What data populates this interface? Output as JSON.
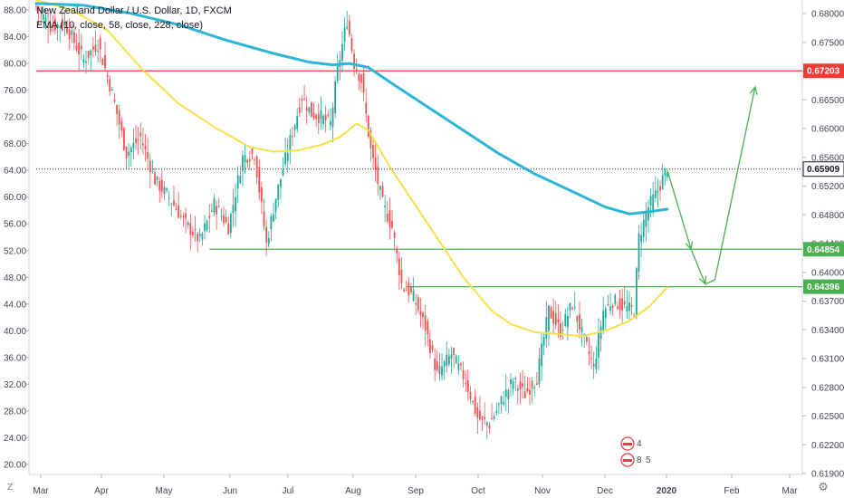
{
  "legend": {
    "title": "New Zealand Dollar / U.S. Dollar, 1D, FXCM",
    "indicator": "EMA (10, close, 58, close, 228, close)"
  },
  "corner": {
    "left_icon": "Z",
    "right_icon": "gear-icon"
  },
  "colors": {
    "bull": "#26a69a",
    "bear": "#ef5350",
    "ema_fast": "#f7e04a",
    "ema_slow": "#2cb5d6",
    "resistance": "#ef3b36",
    "support": "#4caf50",
    "arrow": "#4caf50"
  },
  "chart_data": {
    "type": "candlestick",
    "title": "New Zealand Dollar / U.S. Dollar, 1D, FXCM",
    "x_ticks": [
      "Mar",
      "Apr",
      "May",
      "Jun",
      "Jul",
      "Aug",
      "Sep",
      "Oct",
      "Nov",
      "Dec",
      "2020",
      "Feb",
      "Mar"
    ],
    "left_axis": {
      "ticks": [
        "88.00",
        "84.00",
        "80.00",
        "76.00",
        "72.00",
        "68.00",
        "64.00",
        "60.00",
        "56.00",
        "52.00",
        "48.00",
        "44.00",
        "40.00",
        "36.00",
        "32.00",
        "28.00",
        "24.00",
        "20.00"
      ],
      "ylim": [
        18.5,
        89.5
      ]
    },
    "right_axis": {
      "ticks": [
        "0.68000",
        "0.67500",
        "0.67000",
        "0.66500",
        "0.66000",
        "0.65600",
        "0.65200",
        "0.64800",
        "0.64400",
        "0.64000",
        "0.63700",
        "0.63400",
        "0.63100",
        "0.62800",
        "0.62500",
        "0.62200",
        "0.61900"
      ]
    },
    "price_labels": [
      {
        "value": "0.67203",
        "kind": "resistance"
      },
      {
        "value": "0.65909",
        "kind": "last"
      },
      {
        "value": "0.64854",
        "kind": "support"
      },
      {
        "value": "0.64396",
        "kind": "support"
      }
    ],
    "levels": [
      {
        "kind": "resistance",
        "y": 78.9,
        "from_day": 0
      },
      {
        "kind": "last",
        "y": 64.2,
        "from_day": 0
      },
      {
        "kind": "support",
        "y": 52.2,
        "from_day": 73
      },
      {
        "kind": "support",
        "y": 46.6,
        "from_day": 156
      }
    ],
    "price_path": [
      [
        0,
        88.5
      ],
      [
        6,
        85.5
      ],
      [
        12,
        86.0
      ],
      [
        20,
        80.5
      ],
      [
        26,
        83.0
      ],
      [
        32,
        75.5
      ],
      [
        38,
        66.5
      ],
      [
        44,
        69.0
      ],
      [
        50,
        62.5
      ],
      [
        56,
        60.0
      ],
      [
        63,
        56.0
      ],
      [
        69,
        53.5
      ],
      [
        75,
        59.0
      ],
      [
        81,
        55.5
      ],
      [
        87,
        66.0
      ],
      [
        92,
        66.5
      ],
      [
        97,
        53.0
      ],
      [
        101,
        60.0
      ],
      [
        107,
        68.5
      ],
      [
        112,
        75.0
      ],
      [
        116,
        72.5
      ],
      [
        120,
        72.0
      ],
      [
        124,
        71.0
      ],
      [
        127,
        79.0
      ],
      [
        131,
        86.5
      ],
      [
        134,
        80.0
      ],
      [
        137,
        77.5
      ],
      [
        141,
        67.0
      ],
      [
        146,
        59.0
      ],
      [
        150,
        55.5
      ],
      [
        154,
        47.0
      ],
      [
        159,
        45.0
      ],
      [
        164,
        40.5
      ],
      [
        169,
        33.5
      ],
      [
        175,
        36.5
      ],
      [
        181,
        32.5
      ],
      [
        186,
        27.0
      ],
      [
        191,
        26.0
      ],
      [
        196,
        29.5
      ],
      [
        201,
        32.5
      ],
      [
        206,
        30.5
      ],
      [
        211,
        33.0
      ],
      [
        216,
        43.0
      ],
      [
        221,
        40.0
      ],
      [
        226,
        44.0
      ],
      [
        231,
        38.5
      ],
      [
        235,
        34.5
      ],
      [
        239,
        43.0
      ],
      [
        243,
        44.5
      ],
      [
        248,
        43.5
      ],
      [
        252,
        43.0
      ],
      [
        254,
        54.0
      ],
      [
        258,
        58.5
      ],
      [
        262,
        61.0
      ],
      [
        266,
        64.5
      ]
    ],
    "series": [
      {
        "name": "EMA 58",
        "color": "#f7e04a",
        "points": [
          [
            0,
            89.5
          ],
          [
            15,
            88.0
          ],
          [
            30,
            85.0
          ],
          [
            45,
            79.0
          ],
          [
            60,
            74.0
          ],
          [
            75,
            70.5
          ],
          [
            90,
            67.5
          ],
          [
            100,
            66.8
          ],
          [
            110,
            67.0
          ],
          [
            120,
            67.8
          ],
          [
            128,
            69.0
          ],
          [
            135,
            71.0
          ],
          [
            140,
            70.0
          ],
          [
            150,
            64.0
          ],
          [
            165,
            56.0
          ],
          [
            180,
            48.0
          ],
          [
            192,
            43.0
          ],
          [
            200,
            41.0
          ],
          [
            210,
            39.8
          ],
          [
            220,
            39.5
          ],
          [
            230,
            39.2
          ],
          [
            240,
            40.0
          ],
          [
            250,
            41.5
          ],
          [
            258,
            43.5
          ],
          [
            266,
            46.5
          ]
        ]
      },
      {
        "name": "EMA 228",
        "color": "#2cb5d6",
        "points": [
          [
            0,
            89.0
          ],
          [
            20,
            88.7
          ],
          [
            40,
            87.5
          ],
          [
            60,
            85.8
          ],
          [
            80,
            83.5
          ],
          [
            100,
            81.5
          ],
          [
            115,
            80.2
          ],
          [
            125,
            79.8
          ],
          [
            132,
            80.0
          ],
          [
            140,
            79.4
          ],
          [
            150,
            77.0
          ],
          [
            165,
            73.5
          ],
          [
            180,
            70.0
          ],
          [
            195,
            66.5
          ],
          [
            210,
            63.5
          ],
          [
            225,
            61.0
          ],
          [
            240,
            58.5
          ],
          [
            250,
            57.5
          ],
          [
            258,
            57.8
          ],
          [
            266,
            58.2
          ]
        ]
      }
    ],
    "annotations": {
      "forecast_path": [
        [
          266,
          64.0
        ],
        [
          276,
          52.2
        ],
        [
          282,
          47.0
        ],
        [
          286,
          47.6
        ],
        [
          303,
          76.5
        ]
      ],
      "arrow_tips": [
        [
          276,
          52.2
        ],
        [
          282,
          47.0
        ],
        [
          303,
          76.5
        ]
      ],
      "event_badges": [
        {
          "day": 259,
          "value": "4"
        },
        {
          "day": 259,
          "value": "8"
        },
        {
          "day": 264,
          "value": "5"
        }
      ]
    }
  }
}
